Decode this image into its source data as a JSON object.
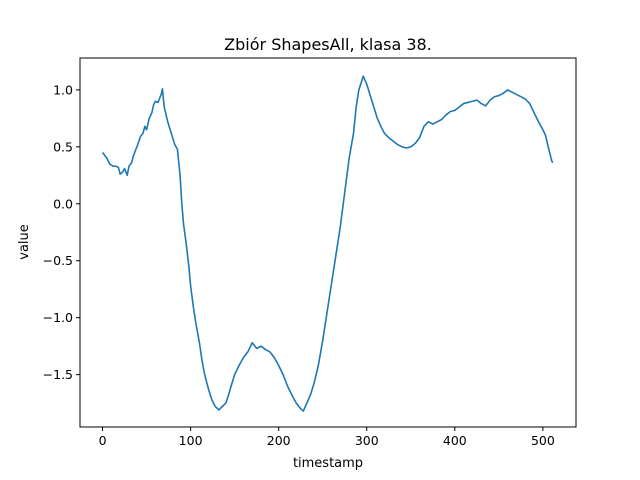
{
  "chart_data": {
    "type": "line",
    "title": "Zbiór ShapesAll, klasa 38.",
    "xlabel": "timestamp",
    "ylabel": "value",
    "xlim": [
      -25.6,
      537.6
    ],
    "ylim": [
      -1.96,
      1.28
    ],
    "xticks": [
      0,
      100,
      200,
      300,
      400,
      500
    ],
    "yticks": [
      -1.5,
      -1.0,
      -0.5,
      0.0,
      0.5,
      1.0
    ],
    "xtick_labels": [
      "0",
      "100",
      "200",
      "300",
      "400",
      "500"
    ],
    "ytick_labels": [
      "−1.5",
      "−1.0",
      "−0.5",
      "0.0",
      "0.5",
      "1.0"
    ],
    "grid": false,
    "series": [
      {
        "color": "#1f77b4",
        "points": [
          [
            0,
            0.45
          ],
          [
            5,
            0.4
          ],
          [
            8,
            0.35
          ],
          [
            12,
            0.33
          ],
          [
            15,
            0.33
          ],
          [
            18,
            0.32
          ],
          [
            20,
            0.26
          ],
          [
            23,
            0.28
          ],
          [
            25,
            0.31
          ],
          [
            28,
            0.25
          ],
          [
            30,
            0.33
          ],
          [
            33,
            0.36
          ],
          [
            35,
            0.42
          ],
          [
            38,
            0.48
          ],
          [
            40,
            0.52
          ],
          [
            43,
            0.59
          ],
          [
            46,
            0.62
          ],
          [
            48,
            0.68
          ],
          [
            50,
            0.65
          ],
          [
            53,
            0.75
          ],
          [
            56,
            0.8
          ],
          [
            58,
            0.87
          ],
          [
            60,
            0.9
          ],
          [
            63,
            0.89
          ],
          [
            65,
            0.93
          ],
          [
            67,
            0.97
          ],
          [
            68,
            1.01
          ],
          [
            70,
            0.85
          ],
          [
            74,
            0.72
          ],
          [
            78,
            0.62
          ],
          [
            82,
            0.52
          ],
          [
            85,
            0.48
          ],
          [
            88,
            0.25
          ],
          [
            90,
            0.0
          ],
          [
            92,
            -0.18
          ],
          [
            95,
            -0.35
          ],
          [
            98,
            -0.55
          ],
          [
            100,
            -0.72
          ],
          [
            103,
            -0.9
          ],
          [
            106,
            -1.05
          ],
          [
            110,
            -1.22
          ],
          [
            113,
            -1.38
          ],
          [
            116,
            -1.5
          ],
          [
            120,
            -1.62
          ],
          [
            124,
            -1.72
          ],
          [
            128,
            -1.78
          ],
          [
            132,
            -1.81
          ],
          [
            136,
            -1.78
          ],
          [
            140,
            -1.75
          ],
          [
            143,
            -1.68
          ],
          [
            146,
            -1.6
          ],
          [
            150,
            -1.5
          ],
          [
            155,
            -1.42
          ],
          [
            160,
            -1.35
          ],
          [
            165,
            -1.3
          ],
          [
            170,
            -1.22
          ],
          [
            175,
            -1.27
          ],
          [
            180,
            -1.25
          ],
          [
            185,
            -1.28
          ],
          [
            190,
            -1.3
          ],
          [
            195,
            -1.35
          ],
          [
            200,
            -1.42
          ],
          [
            205,
            -1.5
          ],
          [
            210,
            -1.6
          ],
          [
            215,
            -1.68
          ],
          [
            220,
            -1.75
          ],
          [
            225,
            -1.8
          ],
          [
            228,
            -1.82
          ],
          [
            232,
            -1.75
          ],
          [
            236,
            -1.68
          ],
          [
            240,
            -1.58
          ],
          [
            245,
            -1.42
          ],
          [
            250,
            -1.2
          ],
          [
            255,
            -0.95
          ],
          [
            260,
            -0.7
          ],
          [
            265,
            -0.45
          ],
          [
            270,
            -0.2
          ],
          [
            275,
            0.1
          ],
          [
            280,
            0.4
          ],
          [
            285,
            0.62
          ],
          [
            288,
            0.85
          ],
          [
            291,
            1.0
          ],
          [
            294,
            1.07
          ],
          [
            296,
            1.12
          ],
          [
            300,
            1.05
          ],
          [
            304,
            0.95
          ],
          [
            308,
            0.85
          ],
          [
            312,
            0.75
          ],
          [
            316,
            0.68
          ],
          [
            320,
            0.62
          ],
          [
            325,
            0.58
          ],
          [
            330,
            0.55
          ],
          [
            335,
            0.52
          ],
          [
            340,
            0.5
          ],
          [
            345,
            0.49
          ],
          [
            350,
            0.5
          ],
          [
            355,
            0.53
          ],
          [
            360,
            0.58
          ],
          [
            365,
            0.68
          ],
          [
            370,
            0.72
          ],
          [
            375,
            0.7
          ],
          [
            380,
            0.72
          ],
          [
            385,
            0.74
          ],
          [
            390,
            0.78
          ],
          [
            395,
            0.81
          ],
          [
            400,
            0.82
          ],
          [
            405,
            0.85
          ],
          [
            410,
            0.88
          ],
          [
            415,
            0.89
          ],
          [
            420,
            0.9
          ],
          [
            425,
            0.91
          ],
          [
            430,
            0.88
          ],
          [
            435,
            0.86
          ],
          [
            440,
            0.91
          ],
          [
            445,
            0.94
          ],
          [
            450,
            0.95
          ],
          [
            455,
            0.97
          ],
          [
            460,
            1.0
          ],
          [
            465,
            0.98
          ],
          [
            470,
            0.96
          ],
          [
            475,
            0.94
          ],
          [
            480,
            0.92
          ],
          [
            485,
            0.88
          ],
          [
            490,
            0.8
          ],
          [
            495,
            0.72
          ],
          [
            500,
            0.65
          ],
          [
            503,
            0.6
          ],
          [
            506,
            0.5
          ],
          [
            508,
            0.44
          ],
          [
            510,
            0.38
          ],
          [
            511,
            0.36
          ]
        ]
      }
    ]
  }
}
